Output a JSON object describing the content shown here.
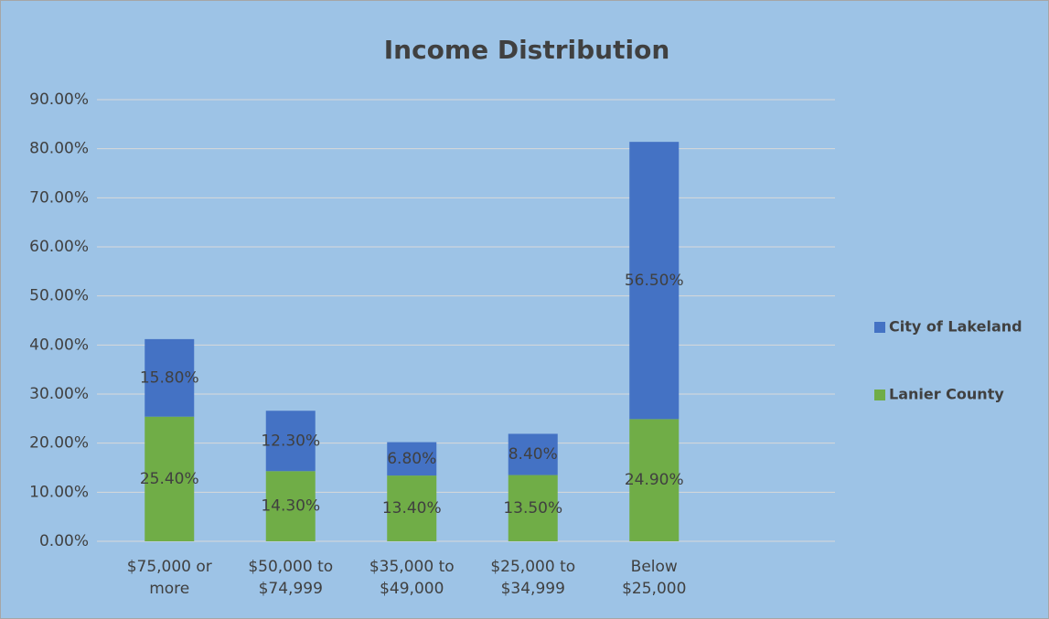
{
  "chart_data": {
    "type": "stacked_bar",
    "title": "Income Distribution",
    "categories": [
      "$75,000 or more",
      "$50,000 to $74,999",
      "$35,000 to $49,000",
      "$25,000 to $34,999",
      "Below $25,000"
    ],
    "series": [
      {
        "name": "Lanier County",
        "color": "#70ad47",
        "values": [
          25.4,
          14.3,
          13.4,
          13.5,
          24.9
        ],
        "value_labels": [
          "25.40%",
          "14.30%",
          "13.40%",
          "13.50%",
          "24.90%"
        ]
      },
      {
        "name": "City of Lakeland",
        "color": "#4472c4",
        "values": [
          15.8,
          12.3,
          6.8,
          8.4,
          56.5
        ],
        "value_labels": [
          "15.80%",
          "12.30%",
          "6.80%",
          "8.40%",
          "56.50%"
        ]
      }
    ],
    "ylim": [
      0,
      90
    ],
    "yticks": [
      {
        "value": 0,
        "label": "0.00%"
      },
      {
        "value": 10,
        "label": "10.00%"
      },
      {
        "value": 20,
        "label": "20.00%"
      },
      {
        "value": 30,
        "label": "30.00%"
      },
      {
        "value": 40,
        "label": "40.00%"
      },
      {
        "value": 50,
        "label": "50.00%"
      },
      {
        "value": 60,
        "label": "60.00%"
      },
      {
        "value": 70,
        "label": "70.00%"
      },
      {
        "value": 80,
        "label": "80.00%"
      },
      {
        "value": 90,
        "label": "90.00%"
      }
    ],
    "grid": true,
    "legend": "right"
  }
}
